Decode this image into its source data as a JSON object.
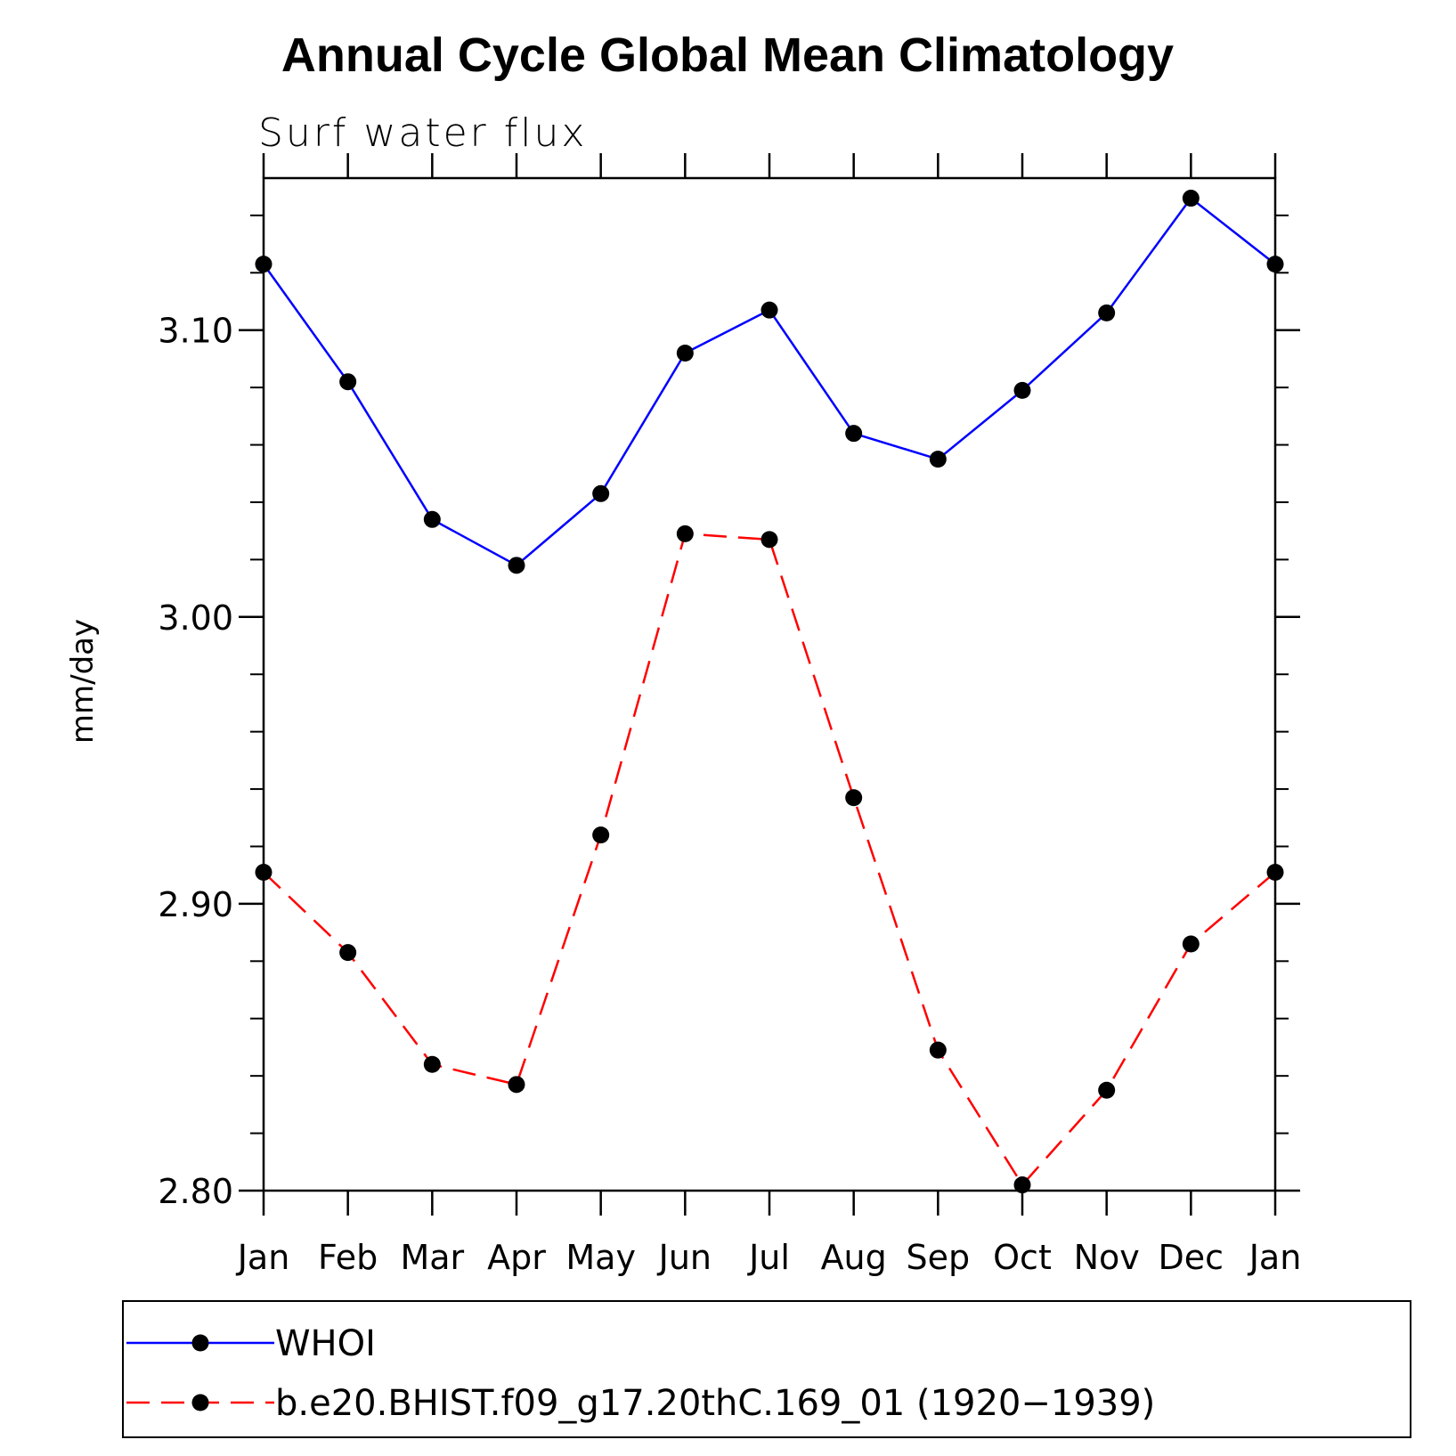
{
  "chart_data": {
    "type": "line",
    "title": "Annual Cycle Global Mean Climatology",
    "subtitle": "Surf water flux",
    "xlabel": "",
    "ylabel": "mm/day",
    "categories": [
      "Jan",
      "Feb",
      "Mar",
      "Apr",
      "May",
      "Jun",
      "Jul",
      "Aug",
      "Sep",
      "Oct",
      "Nov",
      "Dec",
      "Jan"
    ],
    "ylim": [
      2.8,
      3.153
    ],
    "yticks": [
      "2.80",
      "2.90",
      "3.00",
      "3.10"
    ],
    "grid": false,
    "legend_placement": "bottom",
    "series": [
      {
        "name": "WHOI",
        "color": "#0000ff",
        "line_style": "solid",
        "values": [
          3.123,
          3.082,
          3.034,
          3.018,
          3.043,
          3.092,
          3.107,
          3.064,
          3.055,
          3.079,
          3.106,
          3.146,
          3.123
        ]
      },
      {
        "name": "b.e20.BHIST.f09_g17.20thC.169_01 (1920−1939)",
        "color": "#ff0000",
        "line_style": "dashed",
        "values": [
          2.911,
          2.883,
          2.844,
          2.837,
          2.924,
          3.029,
          3.027,
          2.937,
          2.849,
          2.802,
          2.835,
          2.886,
          2.911
        ]
      }
    ]
  }
}
